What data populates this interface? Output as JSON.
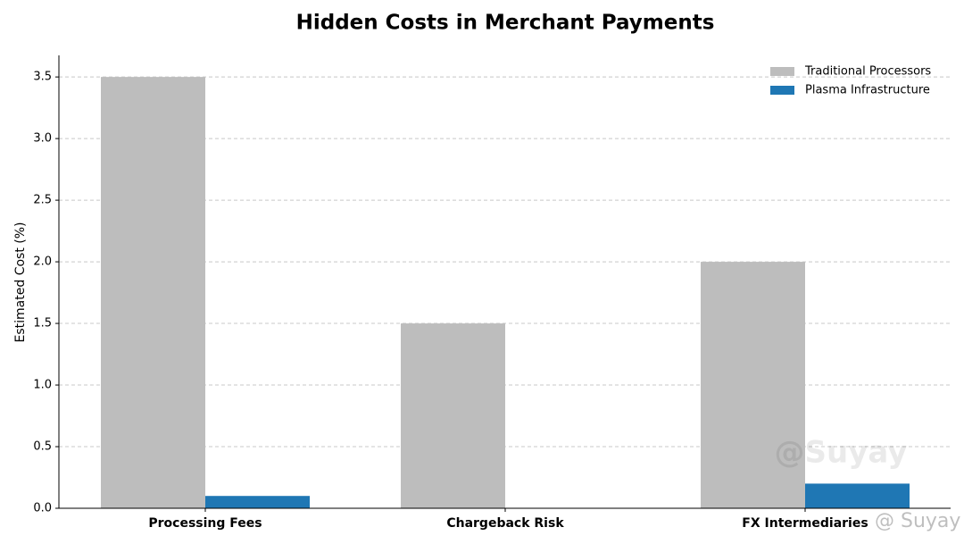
{
  "chart_data": {
    "type": "bar",
    "title": "Hidden Costs in Merchant Payments",
    "ylabel": "Estimated Cost (%)",
    "categories": [
      "Processing Fees",
      "Chargeback Risk",
      "FX Intermediaries"
    ],
    "series": [
      {
        "name": "Traditional Processors",
        "color": "#bdbdbd",
        "values": [
          3.5,
          1.5,
          2.0
        ]
      },
      {
        "name": "Plasma Infrastructure",
        "color": "#1f77b4",
        "values": [
          0.1,
          0,
          0.2
        ]
      }
    ],
    "ylim": [
      0,
      3.675
    ],
    "yticks": [
      {
        "value": 0,
        "label": "0.0"
      },
      0.5,
      {
        "value": 1,
        "label": "1.0"
      },
      1.5,
      {
        "value": 2,
        "label": "2.0"
      },
      2.5,
      {
        "value": 3,
        "label": "3.0"
      },
      3.5
    ],
    "grid": true,
    "legend": "upper-right",
    "watermarks": [
      "@Suyay",
      "@ Suyay"
    ]
  }
}
